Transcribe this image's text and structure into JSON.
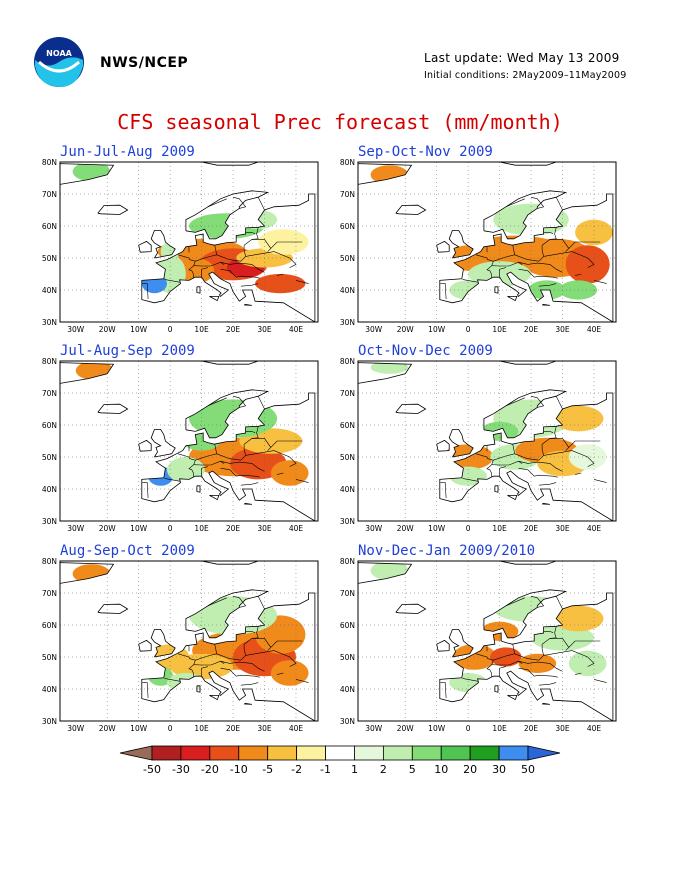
{
  "header": {
    "org": "NWS/NCEP",
    "last_update": "Last update: Wed May 13 2009",
    "initial_conditions": "Initial conditions: 2May2009–11May2009"
  },
  "title": "CFS seasonal Prec forecast (mm/month)",
  "axes": {
    "lon_labels": [
      "30W",
      "20W",
      "10W",
      "0",
      "10E",
      "20E",
      "30E",
      "40E"
    ],
    "lat_labels": [
      "30N",
      "40N",
      "50N",
      "60N",
      "70N",
      "80N"
    ]
  },
  "panels": [
    {
      "title": "Jun-Jul-Aug 2009"
    },
    {
      "title": "Sep-Oct-Nov 2009"
    },
    {
      "title": "Jul-Aug-Sep 2009"
    },
    {
      "title": "Oct-Nov-Dec 2009"
    },
    {
      "title": "Aug-Sep-Oct 2009"
    },
    {
      "title": "Nov-Dec-Jan 2009/2010"
    }
  ],
  "colorbar": {
    "labels": [
      "-50",
      "-30",
      "-20",
      "-10",
      "-5",
      "-2",
      "-1",
      "1",
      "2",
      "5",
      "10",
      "20",
      "30",
      "50"
    ],
    "colors": [
      "#9a6b5a",
      "#b02020",
      "#d81e1e",
      "#e8501a",
      "#f08a1a",
      "#f8c040",
      "#fdf2a0",
      "#ffffff",
      "#e6f8dc",
      "#bfeeb0",
      "#84dc78",
      "#50c450",
      "#1ea01e",
      "#3e8ef0",
      "#2a66d8"
    ]
  }
}
